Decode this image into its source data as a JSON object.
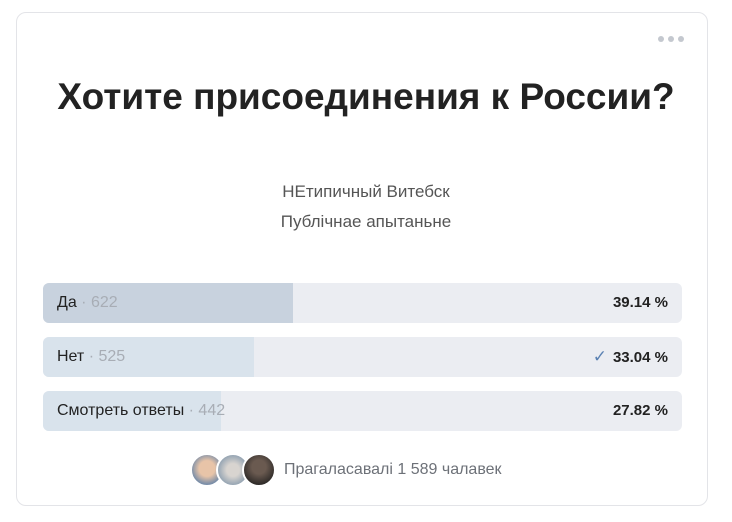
{
  "poll": {
    "title": "Хотите присоединения к России?",
    "author": "НЕтипичный Витебск",
    "type": "Публічнае апытаньне",
    "options": [
      {
        "label": "Да",
        "count": "622",
        "percent": "39.14 %",
        "fraction": 0.3914,
        "voted": false,
        "fill_color": "#c8d2de"
      },
      {
        "label": "Нет",
        "count": "525",
        "percent": "33.04 %",
        "fraction": 0.3304,
        "voted": true,
        "fill_color": "#d9e3ec"
      },
      {
        "label": "Смотреть ответы",
        "count": "442",
        "percent": "27.82 %",
        "fraction": 0.2782,
        "voted": false,
        "fill_color": "#d9e3ec"
      }
    ],
    "voters_text": "Прагаласавалі 1 589 чалавек",
    "check_icon": "✓"
  },
  "colors": {
    "accent": "#5b82b3",
    "bar_bg": "#ebedf2"
  }
}
